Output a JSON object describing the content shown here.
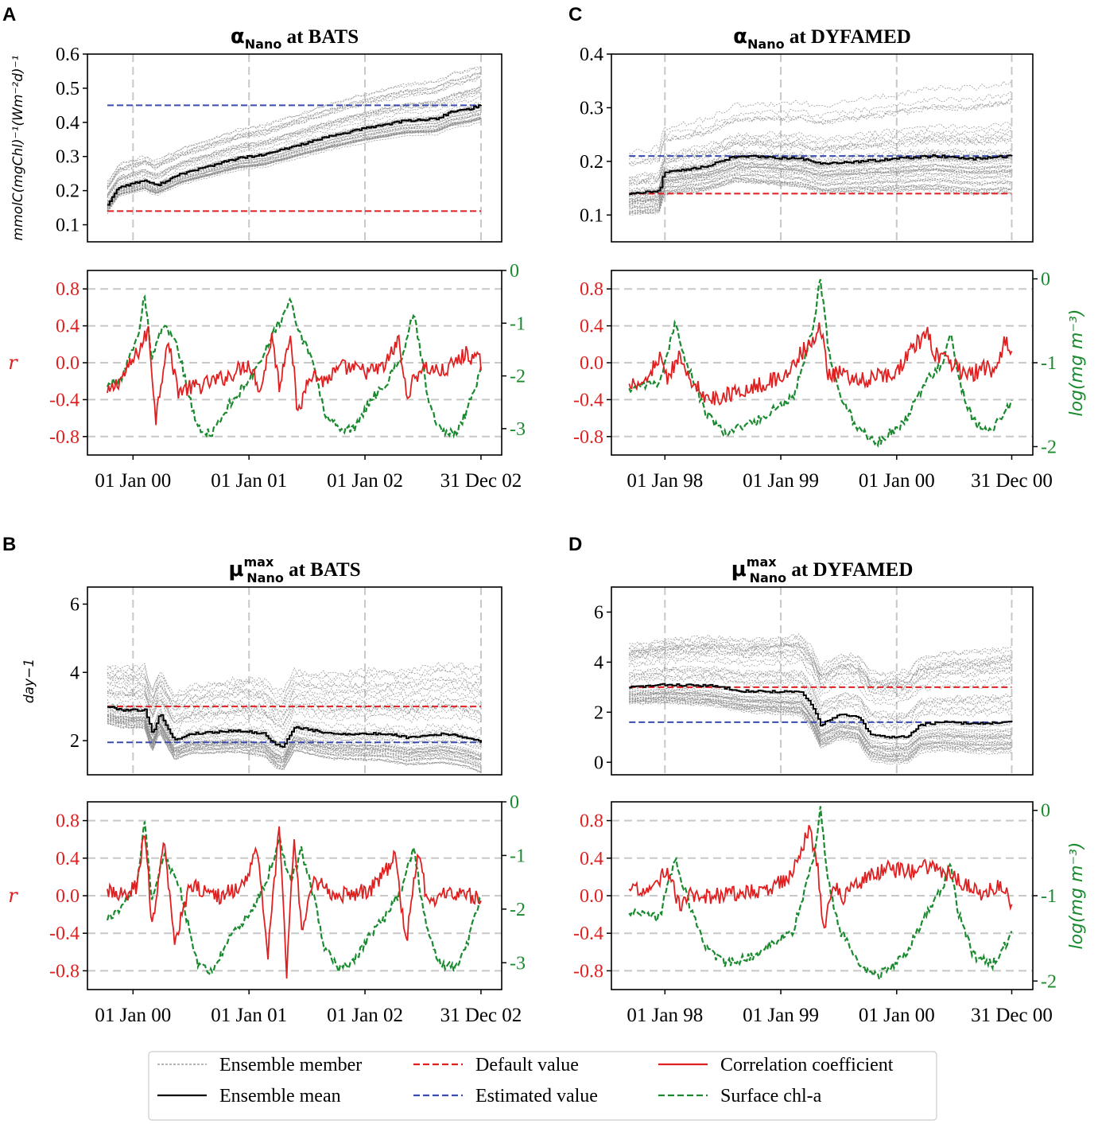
{
  "figure": {
    "legend": {
      "items": [
        {
          "label": "Ensemble member",
          "style": "thin-grey-dashed",
          "color": "#8c8c8c"
        },
        {
          "label": "Ensemble mean",
          "style": "solid",
          "color": "#000000"
        },
        {
          "label": "Default value",
          "style": "dashed",
          "color": "#e02020"
        },
        {
          "label": "Estimated value",
          "style": "dashed",
          "color": "#3a4bb0"
        },
        {
          "label": "Correlation coefficient",
          "style": "solid",
          "color": "#e02020"
        },
        {
          "label": "Surface chl-a",
          "style": "dashed",
          "color": "#1a8a2e"
        }
      ]
    },
    "colors": {
      "red": "#e02020",
      "blue": "#3a4bb0",
      "green": "#1a8a2e",
      "grey": "#8c8c8c",
      "black": "#000000",
      "grid": "#c8c8c8"
    }
  },
  "chart_data": [
    {
      "panel": "A",
      "type": "line",
      "title_symbol": "α",
      "title_sub": "Nano",
      "title_sup": "",
      "title_site": " at BATS",
      "ylabel": "mmolC(mgChl)⁻¹(Wm⁻²d)⁻¹",
      "ylim": [
        0.05,
        0.6
      ],
      "yticks": [
        0.1,
        0.2,
        0.3,
        0.4,
        0.5,
        0.6
      ],
      "ytick_labels": [
        "0.1",
        "0.2",
        "0.3",
        "0.4",
        "0.5",
        "0.6"
      ],
      "default_value": 0.14,
      "estimated_value": 0.45,
      "mean_keypoints": [
        [
          0,
          0.16
        ],
        [
          0.03,
          0.21
        ],
        [
          0.1,
          0.23
        ],
        [
          0.13,
          0.215
        ],
        [
          0.2,
          0.25
        ],
        [
          0.35,
          0.295
        ],
        [
          0.42,
          0.305
        ],
        [
          0.5,
          0.33
        ],
        [
          0.6,
          0.36
        ],
        [
          0.7,
          0.385
        ],
        [
          0.8,
          0.405
        ],
        [
          0.88,
          0.41
        ],
        [
          0.92,
          0.43
        ],
        [
          0.97,
          0.44
        ],
        [
          1.0,
          0.45
        ]
      ],
      "member_spread": [
        0.05,
        0.12
      ]
    },
    {
      "panel": "A-corr",
      "type": "line",
      "ylabel": "r",
      "ylabel_right": "",
      "ylim": [
        -1.0,
        1.0
      ],
      "yticks": [
        -0.8,
        -0.4,
        0.0,
        0.4,
        0.8
      ],
      "ytick_labels": [
        "-0.8",
        "-0.4",
        "0.0",
        "0.4",
        "0.8"
      ],
      "y2lim": [
        -3.5,
        0.0
      ],
      "y2ticks": [
        -3,
        -2,
        -1,
        0
      ],
      "y2tick_labels": [
        "-3",
        "-2",
        "-1",
        "0"
      ],
      "chl_keypoints": [
        [
          0,
          -2.2
        ],
        [
          0.04,
          -2.0
        ],
        [
          0.08,
          -1.3
        ],
        [
          0.1,
          -0.45
        ],
        [
          0.12,
          -1.7
        ],
        [
          0.15,
          -1.0
        ],
        [
          0.19,
          -1.5
        ],
        [
          0.24,
          -3.0
        ],
        [
          0.28,
          -3.1
        ],
        [
          0.33,
          -2.5
        ],
        [
          0.39,
          -2.0
        ],
        [
          0.43,
          -1.4
        ],
        [
          0.46,
          -1.0
        ],
        [
          0.49,
          -0.6
        ],
        [
          0.52,
          -1.3
        ],
        [
          0.55,
          -1.7
        ],
        [
          0.58,
          -2.7
        ],
        [
          0.62,
          -3.0
        ],
        [
          0.66,
          -3.0
        ],
        [
          0.7,
          -2.5
        ],
        [
          0.75,
          -2.1
        ],
        [
          0.79,
          -1.6
        ],
        [
          0.82,
          -0.8
        ],
        [
          0.84,
          -1.6
        ],
        [
          0.86,
          -2.5
        ],
        [
          0.89,
          -3.0
        ],
        [
          0.93,
          -3.1
        ],
        [
          0.96,
          -2.7
        ],
        [
          1.0,
          -1.9
        ]
      ],
      "corr_keypoints": [
        [
          0,
          -0.35
        ],
        [
          0.05,
          -0.1
        ],
        [
          0.08,
          0.1
        ],
        [
          0.11,
          0.35
        ],
        [
          0.13,
          -0.6
        ],
        [
          0.16,
          0.25
        ],
        [
          0.19,
          -0.3
        ],
        [
          0.25,
          -0.25
        ],
        [
          0.32,
          -0.15
        ],
        [
          0.38,
          0.0
        ],
        [
          0.41,
          -0.3
        ],
        [
          0.44,
          0.3
        ],
        [
          0.46,
          -0.25
        ],
        [
          0.49,
          0.35
        ],
        [
          0.51,
          -0.6
        ],
        [
          0.54,
          -0.1
        ],
        [
          0.58,
          -0.2
        ],
        [
          0.63,
          -0.05
        ],
        [
          0.7,
          -0.1
        ],
        [
          0.74,
          -0.05
        ],
        [
          0.78,
          0.25
        ],
        [
          0.8,
          -0.35
        ],
        [
          0.84,
          -0.05
        ],
        [
          0.9,
          -0.1
        ],
        [
          0.96,
          0.1
        ],
        [
          1.0,
          0.0
        ]
      ],
      "xtick_labels": [
        "01 Jan 00",
        "01 Jan 01",
        "01 Jan 02",
        "31 Dec 02"
      ]
    },
    {
      "panel": "B",
      "type": "line",
      "title_symbol": "μ",
      "title_sub": "Nano",
      "title_sup": "max",
      "title_site": " at BATS",
      "ylabel": "day−1",
      "ylim": [
        1.0,
        6.5
      ],
      "yticks": [
        2,
        4,
        6
      ],
      "ytick_labels": [
        "2",
        "4",
        "6"
      ],
      "default_value": 3.0,
      "estimated_value": 1.95,
      "mean_keypoints": [
        [
          0,
          3.0
        ],
        [
          0.04,
          2.9
        ],
        [
          0.1,
          2.9
        ],
        [
          0.12,
          2.2
        ],
        [
          0.14,
          2.8
        ],
        [
          0.18,
          2.0
        ],
        [
          0.22,
          2.2
        ],
        [
          0.35,
          2.3
        ],
        [
          0.42,
          2.2
        ],
        [
          0.45,
          1.9
        ],
        [
          0.47,
          1.8
        ],
        [
          0.5,
          2.4
        ],
        [
          0.6,
          2.2
        ],
        [
          0.75,
          2.2
        ],
        [
          0.8,
          2.1
        ],
        [
          0.9,
          2.2
        ],
        [
          0.96,
          2.1
        ],
        [
          1.0,
          1.95
        ]
      ],
      "member_spread": [
        0.9,
        2.5
      ]
    },
    {
      "panel": "B-corr",
      "type": "line",
      "ylabel": "r",
      "ylabel_right": "",
      "ylim": [
        -1.0,
        1.0
      ],
      "yticks": [
        -0.8,
        -0.4,
        0.0,
        0.4,
        0.8
      ],
      "ytick_labels": [
        "-0.8",
        "-0.4",
        "0.0",
        "0.4",
        "0.8"
      ],
      "y2lim": [
        -3.5,
        0.0
      ],
      "y2ticks": [
        -3,
        -2,
        -1,
        0
      ],
      "y2tick_labels": [
        "-3",
        "-2",
        "-1",
        "0"
      ],
      "chl_keypoints": [
        [
          0,
          -2.2
        ],
        [
          0.04,
          -2.0
        ],
        [
          0.08,
          -1.5
        ],
        [
          0.1,
          -0.35
        ],
        [
          0.12,
          -1.9
        ],
        [
          0.15,
          -1.0
        ],
        [
          0.19,
          -1.5
        ],
        [
          0.24,
          -3.0
        ],
        [
          0.28,
          -3.2
        ],
        [
          0.33,
          -2.5
        ],
        [
          0.39,
          -2.0
        ],
        [
          0.43,
          -1.4
        ],
        [
          0.46,
          -0.7
        ],
        [
          0.49,
          -1.5
        ],
        [
          0.52,
          -0.9
        ],
        [
          0.55,
          -1.7
        ],
        [
          0.58,
          -2.7
        ],
        [
          0.62,
          -3.1
        ],
        [
          0.66,
          -3.0
        ],
        [
          0.7,
          -2.5
        ],
        [
          0.75,
          -2.1
        ],
        [
          0.79,
          -1.6
        ],
        [
          0.82,
          -0.8
        ],
        [
          0.84,
          -1.8
        ],
        [
          0.86,
          -2.5
        ],
        [
          0.89,
          -3.0
        ],
        [
          0.93,
          -3.1
        ],
        [
          0.96,
          -2.7
        ],
        [
          1.0,
          -1.8
        ]
      ],
      "corr_keypoints": [
        [
          0,
          0.05
        ],
        [
          0.05,
          0.0
        ],
        [
          0.08,
          0.1
        ],
        [
          0.1,
          0.7
        ],
        [
          0.12,
          -0.35
        ],
        [
          0.15,
          0.6
        ],
        [
          0.18,
          -0.5
        ],
        [
          0.22,
          0.1
        ],
        [
          0.3,
          0.0
        ],
        [
          0.36,
          0.1
        ],
        [
          0.4,
          0.5
        ],
        [
          0.43,
          -0.6
        ],
        [
          0.46,
          0.7
        ],
        [
          0.48,
          -0.8
        ],
        [
          0.5,
          0.6
        ],
        [
          0.52,
          -0.4
        ],
        [
          0.55,
          0.2
        ],
        [
          0.6,
          0.0
        ],
        [
          0.7,
          0.05
        ],
        [
          0.77,
          0.4
        ],
        [
          0.8,
          -0.5
        ],
        [
          0.83,
          0.45
        ],
        [
          0.86,
          -0.1
        ],
        [
          0.9,
          0.05
        ],
        [
          0.96,
          0.0
        ],
        [
          1.0,
          0.0
        ]
      ],
      "xtick_labels": [
        "01 Jan 00",
        "01 Jan 01",
        "01 Jan 02",
        "31 Dec 02"
      ]
    },
    {
      "panel": "C",
      "type": "line",
      "title_symbol": "α",
      "title_sub": "Nano",
      "title_sup": "",
      "title_site": " at DYFAMED",
      "ylabel": "",
      "ylim": [
        0.05,
        0.4
      ],
      "yticks": [
        0.1,
        0.2,
        0.3,
        0.4
      ],
      "ytick_labels": [
        "0.1",
        "0.2",
        "0.3",
        "0.4"
      ],
      "default_value": 0.14,
      "estimated_value": 0.21,
      "mean_keypoints": [
        [
          0,
          0.14
        ],
        [
          0.08,
          0.145
        ],
        [
          0.09,
          0.18
        ],
        [
          0.2,
          0.19
        ],
        [
          0.28,
          0.21
        ],
        [
          0.45,
          0.205
        ],
        [
          0.5,
          0.195
        ],
        [
          0.6,
          0.2
        ],
        [
          0.7,
          0.205
        ],
        [
          0.8,
          0.21
        ],
        [
          0.9,
          0.205
        ],
        [
          1.0,
          0.21
        ]
      ],
      "member_spread": [
        0.07,
        0.14
      ]
    },
    {
      "panel": "C-corr",
      "type": "line",
      "ylabel": "",
      "ylabel_right": "log(mg m⁻³)",
      "ylim": [
        -1.0,
        1.0
      ],
      "yticks": [
        -0.8,
        -0.4,
        0.0,
        0.4,
        0.8
      ],
      "ytick_labels": [
        "-0.8",
        "-0.4",
        "0.0",
        "0.4",
        "0.8"
      ],
      "y2lim": [
        -2.1,
        0.1
      ],
      "y2ticks": [
        -2,
        -1,
        0
      ],
      "y2tick_labels": [
        "-2",
        "-1",
        "0"
      ],
      "chl_keypoints": [
        [
          0,
          -1.3
        ],
        [
          0.08,
          -1.25
        ],
        [
          0.12,
          -0.55
        ],
        [
          0.15,
          -1.0
        ],
        [
          0.2,
          -1.6
        ],
        [
          0.25,
          -1.85
        ],
        [
          0.33,
          -1.7
        ],
        [
          0.43,
          -1.4
        ],
        [
          0.48,
          -0.6
        ],
        [
          0.5,
          0.0
        ],
        [
          0.52,
          -0.8
        ],
        [
          0.55,
          -1.4
        ],
        [
          0.6,
          -1.8
        ],
        [
          0.65,
          -1.95
        ],
        [
          0.72,
          -1.7
        ],
        [
          0.78,
          -1.2
        ],
        [
          0.82,
          -1.0
        ],
        [
          0.84,
          -0.65
        ],
        [
          0.86,
          -1.2
        ],
        [
          0.9,
          -1.7
        ],
        [
          0.95,
          -1.8
        ],
        [
          1.0,
          -1.45
        ]
      ],
      "corr_keypoints": [
        [
          0,
          -0.25
        ],
        [
          0.05,
          -0.15
        ],
        [
          0.08,
          0.05
        ],
        [
          0.1,
          -0.2
        ],
        [
          0.13,
          0.1
        ],
        [
          0.15,
          -0.1
        ],
        [
          0.2,
          -0.4
        ],
        [
          0.3,
          -0.3
        ],
        [
          0.4,
          -0.15
        ],
        [
          0.47,
          0.2
        ],
        [
          0.5,
          0.4
        ],
        [
          0.52,
          -0.15
        ],
        [
          0.56,
          -0.1
        ],
        [
          0.6,
          -0.2
        ],
        [
          0.7,
          -0.1
        ],
        [
          0.75,
          0.2
        ],
        [
          0.78,
          0.3
        ],
        [
          0.8,
          0.1
        ],
        [
          0.84,
          0.0
        ],
        [
          0.88,
          -0.15
        ],
        [
          0.93,
          -0.05
        ],
        [
          0.96,
          -0.1
        ],
        [
          0.98,
          0.25
        ],
        [
          1.0,
          0.15
        ]
      ],
      "xtick_labels": [
        "01 Jan 98",
        "01 Jan 99",
        "01 Jan 00",
        "31 Dec 00"
      ]
    },
    {
      "panel": "D",
      "type": "line",
      "title_symbol": "μ",
      "title_sub": "Nano",
      "title_sup": "max",
      "title_site": " at DYFAMED",
      "ylabel": "",
      "ylim": [
        -0.5,
        7.0
      ],
      "yticks": [
        0,
        2,
        4,
        6
      ],
      "ytick_labels": [
        "0",
        "2",
        "4",
        "6"
      ],
      "default_value": 3.0,
      "estimated_value": 1.6,
      "mean_keypoints": [
        [
          0,
          3.0
        ],
        [
          0.1,
          3.1
        ],
        [
          0.22,
          3.05
        ],
        [
          0.3,
          2.85
        ],
        [
          0.45,
          2.8
        ],
        [
          0.48,
          2.2
        ],
        [
          0.5,
          1.5
        ],
        [
          0.55,
          1.9
        ],
        [
          0.6,
          1.8
        ],
        [
          0.63,
          1.1
        ],
        [
          0.68,
          1.0
        ],
        [
          0.73,
          1.05
        ],
        [
          0.76,
          1.5
        ],
        [
          0.82,
          1.6
        ],
        [
          0.9,
          1.55
        ],
        [
          1.0,
          1.6
        ]
      ],
      "member_spread": [
        1.3,
        3.0
      ]
    },
    {
      "panel": "D-corr",
      "type": "line",
      "ylabel": "",
      "ylabel_right": "log(mg m⁻³)",
      "ylim": [
        -1.0,
        1.0
      ],
      "yticks": [
        -0.8,
        -0.4,
        0.0,
        0.4,
        0.8
      ],
      "ytick_labels": [
        "-0.8",
        "-0.4",
        "0.0",
        "0.4",
        "0.8"
      ],
      "y2lim": [
        -2.1,
        0.1
      ],
      "y2ticks": [
        -2,
        -1,
        0
      ],
      "y2tick_labels": [
        "-2",
        "-1",
        "0"
      ],
      "chl_keypoints": [
        [
          0,
          -1.2
        ],
        [
          0.08,
          -1.25
        ],
        [
          0.12,
          -0.55
        ],
        [
          0.15,
          -1.0
        ],
        [
          0.2,
          -1.6
        ],
        [
          0.25,
          -1.8
        ],
        [
          0.33,
          -1.7
        ],
        [
          0.43,
          -1.4
        ],
        [
          0.48,
          -0.6
        ],
        [
          0.5,
          0.0
        ],
        [
          0.52,
          -0.8
        ],
        [
          0.55,
          -1.4
        ],
        [
          0.6,
          -1.8
        ],
        [
          0.65,
          -1.95
        ],
        [
          0.72,
          -1.7
        ],
        [
          0.78,
          -1.2
        ],
        [
          0.82,
          -0.9
        ],
        [
          0.84,
          -0.65
        ],
        [
          0.86,
          -1.2
        ],
        [
          0.9,
          -1.7
        ],
        [
          0.95,
          -1.8
        ],
        [
          1.0,
          -1.45
        ]
      ],
      "corr_keypoints": [
        [
          0,
          0.05
        ],
        [
          0.06,
          0.05
        ],
        [
          0.1,
          0.3
        ],
        [
          0.13,
          -0.1
        ],
        [
          0.16,
          0.0
        ],
        [
          0.25,
          0.0
        ],
        [
          0.35,
          0.05
        ],
        [
          0.42,
          0.2
        ],
        [
          0.47,
          0.7
        ],
        [
          0.49,
          0.4
        ],
        [
          0.51,
          -0.4
        ],
        [
          0.53,
          0.1
        ],
        [
          0.56,
          0.0
        ],
        [
          0.62,
          0.2
        ],
        [
          0.68,
          0.3
        ],
        [
          0.72,
          0.25
        ],
        [
          0.76,
          0.3
        ],
        [
          0.8,
          0.3
        ],
        [
          0.84,
          0.2
        ],
        [
          0.88,
          0.1
        ],
        [
          0.93,
          0.0
        ],
        [
          0.97,
          0.15
        ],
        [
          1.0,
          -0.1
        ]
      ],
      "xtick_labels": [
        "01 Jan 98",
        "01 Jan 99",
        "01 Jan 00",
        "31 Dec 00"
      ]
    }
  ]
}
